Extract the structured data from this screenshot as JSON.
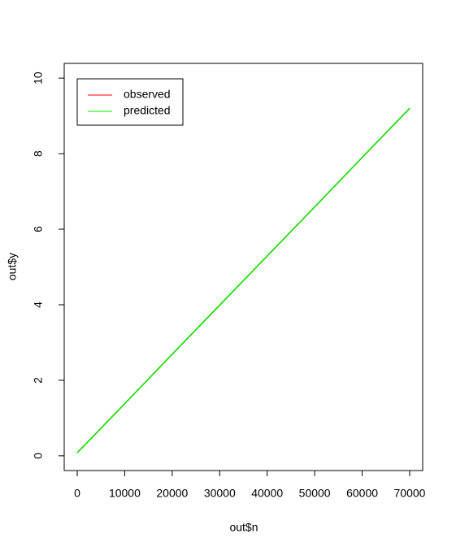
{
  "chart_data": {
    "type": "line",
    "x_label": "out$n",
    "y_label": "out$y",
    "x": [
      0,
      10000,
      20000,
      30000,
      40000,
      50000,
      60000,
      70000
    ],
    "series": [
      {
        "name": "observed",
        "color": "#ff0000",
        "values": [
          0.08,
          1.38,
          2.69,
          3.99,
          5.29,
          6.59,
          7.9,
          9.2
        ]
      },
      {
        "name": "predicted",
        "color": "#00ee00",
        "values": [
          0.08,
          1.38,
          2.69,
          3.99,
          5.29,
          6.59,
          7.9,
          9.2
        ]
      }
    ],
    "xlim": [
      -2740,
      72740
    ],
    "ylim": [
      -0.39,
      10.39
    ],
    "xticks": [
      0,
      10000,
      20000,
      30000,
      40000,
      50000,
      60000,
      70000
    ],
    "yticks": [
      0,
      2,
      4,
      6,
      8,
      10
    ],
    "legend": "top-left"
  }
}
